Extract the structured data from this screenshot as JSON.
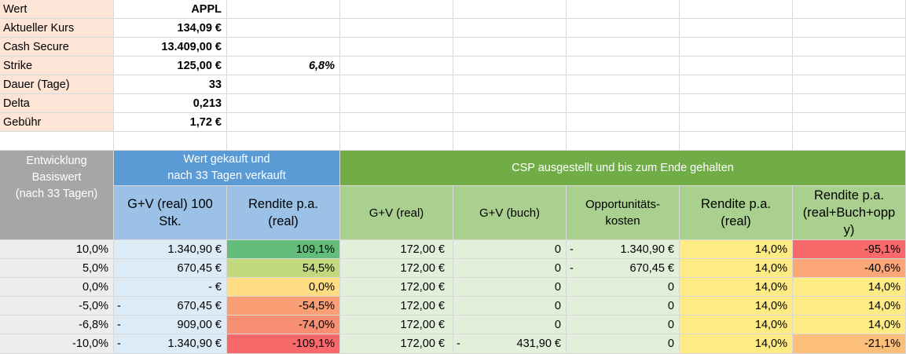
{
  "params": {
    "rows": [
      {
        "label": "Wert",
        "value": "APPL",
        "extra": ""
      },
      {
        "label": "Aktueller Kurs",
        "value": "134,09 €",
        "extra": ""
      },
      {
        "label": "Cash Secure",
        "value": "13.409,00 €",
        "extra": ""
      },
      {
        "label": "Strike",
        "value": "125,00 €",
        "extra": "6,8%"
      },
      {
        "label": "Dauer (Tage)",
        "value": "33",
        "extra": ""
      },
      {
        "label": "Delta",
        "value": "0,213",
        "extra": ""
      },
      {
        "label": "Gebühr",
        "value": "1,72 €",
        "extra": ""
      }
    ]
  },
  "headers": {
    "entwicklung": [
      "Entwicklung",
      "Basiswert",
      "(nach 33 Tagen)"
    ],
    "wert_group": [
      "Wert gekauft und",
      "nach 33 Tagen verkauft"
    ],
    "csp_group": "CSP ausgestellt und bis zum Ende gehalten",
    "gv_real_100": [
      "G+V (real) 100",
      "Stk."
    ],
    "rendite_real": [
      "Rendite p.a.",
      "(real)"
    ],
    "gv_real": "G+V (real)",
    "gv_buch": "G+V (buch)",
    "opp_kosten": [
      "Opportunitäts-",
      "kosten"
    ],
    "rendite_real2": [
      "Rendite p.a.",
      "(real)"
    ],
    "rendite_all": [
      "Rendite p.a.",
      "(real+Buch+opp",
      "y)"
    ]
  },
  "data_rows": [
    {
      "entw": "10,0%",
      "gv100_sign": "",
      "gv100": "1.340,90 €",
      "rend": "109,1%",
      "gvreal": "172,00 €",
      "gvbuch_sign": "",
      "gvbuch": "0",
      "opp_sign": "-",
      "opp": "1.340,90 €",
      "rend2": "14,0%",
      "rendall": "-95,1%"
    },
    {
      "entw": "5,0%",
      "gv100_sign": "",
      "gv100": "670,45 €",
      "rend": "54,5%",
      "gvreal": "172,00 €",
      "gvbuch_sign": "",
      "gvbuch": "0",
      "opp_sign": "-",
      "opp": "670,45 €",
      "rend2": "14,0%",
      "rendall": "-40,6%"
    },
    {
      "entw": "0,0%",
      "gv100_sign": "",
      "gv100": "-      €",
      "rend": "0,0%",
      "gvreal": "172,00 €",
      "gvbuch_sign": "",
      "gvbuch": "0",
      "opp_sign": "",
      "opp": "0",
      "rend2": "14,0%",
      "rendall": "14,0%"
    },
    {
      "entw": "-5,0%",
      "gv100_sign": "-",
      "gv100": "670,45 €",
      "rend": "-54,5%",
      "gvreal": "172,00 €",
      "gvbuch_sign": "",
      "gvbuch": "0",
      "opp_sign": "",
      "opp": "0",
      "rend2": "14,0%",
      "rendall": "14,0%"
    },
    {
      "entw": "-6,8%",
      "gv100_sign": "-",
      "gv100": "909,00 €",
      "rend": "-74,0%",
      "gvreal": "172,00 €",
      "gvbuch_sign": "",
      "gvbuch": "0",
      "opp_sign": "",
      "opp": "0",
      "rend2": "14,0%",
      "rendall": "14,0%"
    },
    {
      "entw": "-10,0%",
      "gv100_sign": "-",
      "gv100": "1.340,90 €",
      "rend": "-109,1%",
      "gvreal": "172,00 €",
      "gvbuch_sign": "-",
      "gvbuch": "431,90 €",
      "opp_sign": "",
      "opp": "0",
      "rend2": "14,0%",
      "rendall": "-21,1%"
    }
  ],
  "colors": {
    "param_label_bg": "#fce4d6",
    "header_gray": "#a6a6a6",
    "header_blue": "#5b9bd5",
    "header_green": "#70ad47",
    "sub_blue": "#9bc2e6",
    "sub_green": "#a9d08e",
    "entw_col_bg": "#ededed",
    "blue_light": "#ddebf7",
    "green_light": "#e2efda",
    "rendite_scale": [
      "#63be7b",
      "#c3d980",
      "#ffdc81",
      "#fa9e75",
      "#f98f72",
      "#f8696b"
    ],
    "rendite2_bg": "#ffeb84",
    "rendall_scale": [
      "#f8696b",
      "#fba777",
      "#ffeb84",
      "#ffeb84",
      "#ffeb84",
      "#fcbf7b"
    ]
  }
}
